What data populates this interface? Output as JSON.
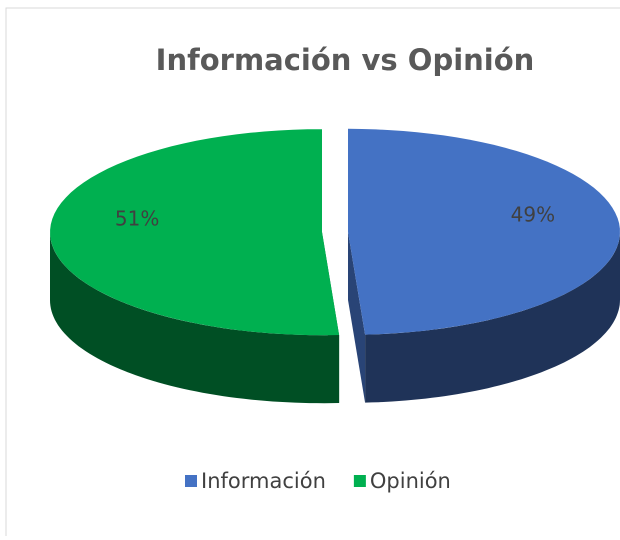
{
  "chart_data": {
    "type": "pie",
    "title": "Información vs Opinión",
    "categories": [
      "Información",
      "Opinión"
    ],
    "values": [
      49,
      51
    ],
    "value_labels": [
      "49%",
      "51%"
    ],
    "colors": [
      "#4472c4",
      "#00b050"
    ],
    "legend": "bottom"
  }
}
